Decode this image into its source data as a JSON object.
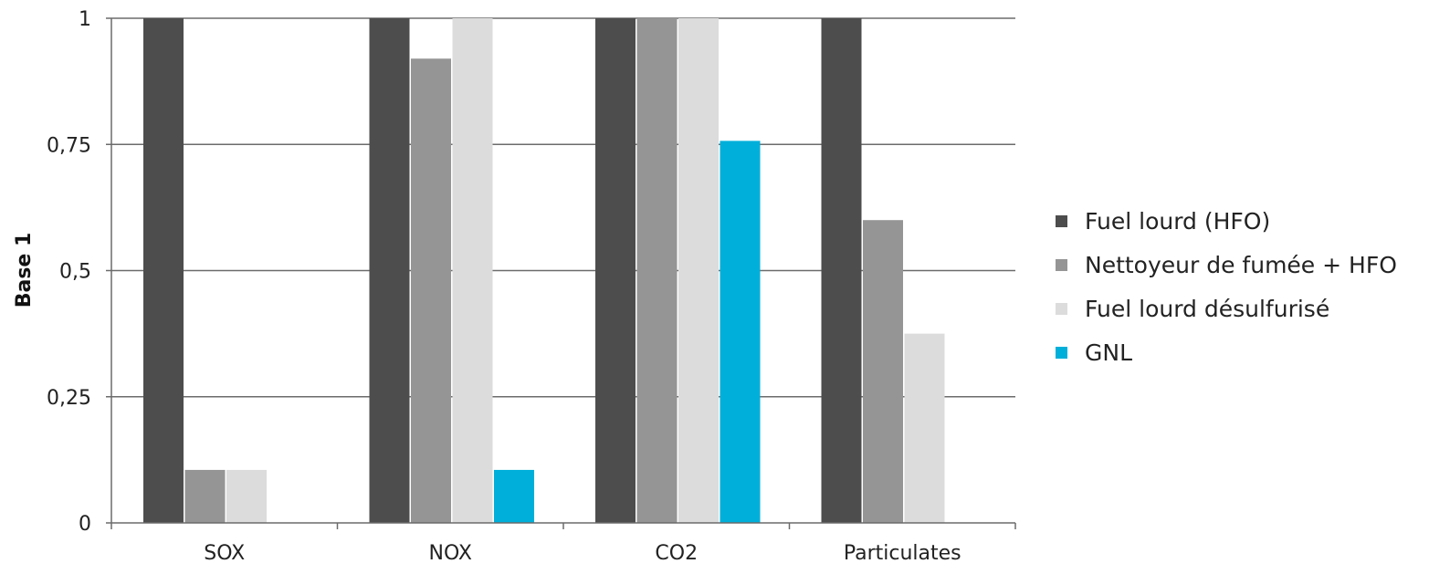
{
  "chart_data": {
    "type": "bar",
    "title": "",
    "xlabel": "",
    "ylabel": "Base 1",
    "ylim": [
      0,
      1
    ],
    "yticks": [
      "0",
      "0,25",
      "0,5",
      "0,75",
      "1"
    ],
    "ytick_values": [
      0,
      0.25,
      0.5,
      0.75,
      1
    ],
    "categories": [
      "SOX",
      "NOX",
      "CO2",
      "Particulates"
    ],
    "series": [
      {
        "name": "Fuel lourd (HFO)",
        "color": "#4d4d4d",
        "values": [
          1,
          1,
          1,
          1
        ]
      },
      {
        "name": "Nettoyeur de fumée + HFO",
        "color": "#959595",
        "values": [
          0.105,
          0.92,
          1,
          0.6
        ]
      },
      {
        "name": "Fuel lourd désulfurisé",
        "color": "#dcdcdc",
        "values": [
          0.105,
          1,
          1,
          0.375
        ]
      },
      {
        "name": "GNL",
        "color": "#00afda",
        "values": [
          null,
          0.105,
          0.757,
          null
        ]
      }
    ],
    "grid": true,
    "legend_position": "right"
  }
}
